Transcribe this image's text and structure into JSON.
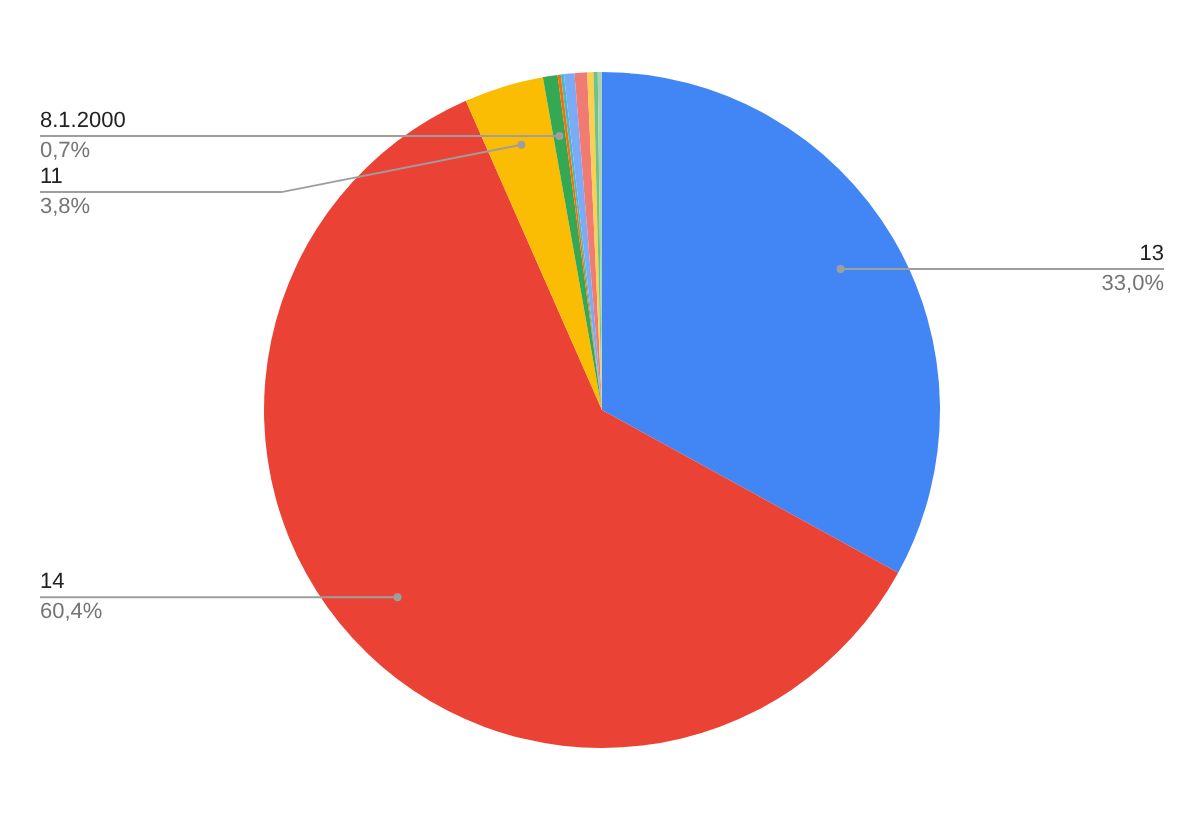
{
  "chart_data": {
    "type": "pie",
    "categories": [
      "13",
      "14",
      "11",
      "8.1.2000",
      null,
      null,
      null,
      null,
      null,
      null,
      null
    ],
    "values": [
      33.0,
      60.4,
      3.8,
      0.7,
      0.15,
      0.15,
      0.5,
      0.6,
      0.3,
      0.2,
      0.2
    ],
    "value_labels": [
      "33,0%",
      "60,4%",
      "3,8%",
      "0,7%",
      null,
      null,
      null,
      null,
      null,
      null,
      null
    ],
    "colors": [
      "#4285f4",
      "#ea4335",
      "#fbbc04",
      "#34a853",
      "#ff6d01",
      "#46bdc6",
      "#7baaf7",
      "#f07b72",
      "#fcd04f",
      "#71c287",
      "#a8d5b0"
    ],
    "legend": false
  }
}
